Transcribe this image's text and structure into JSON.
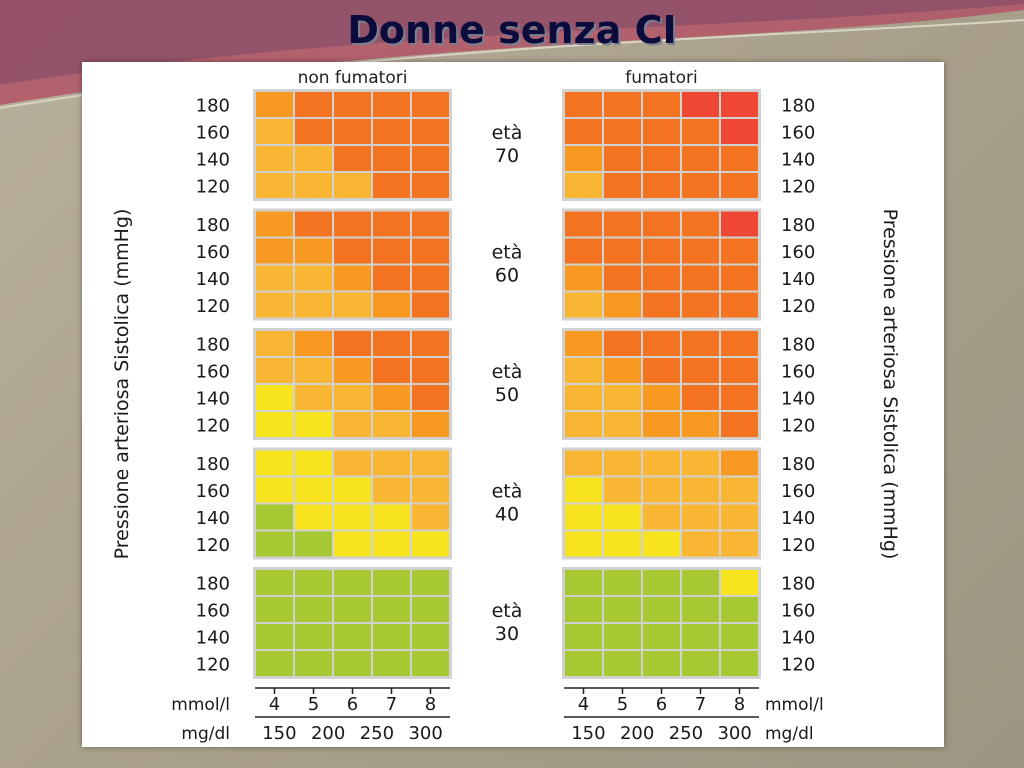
{
  "slide": {
    "title": "Donne senza CI"
  },
  "colors": {
    "green": "#a6c832",
    "yellow": "#f7e41e",
    "light_orange": "#f9b632",
    "orange": "#f89a22",
    "dark_orange": "#f47320",
    "red": "#ee4733"
  },
  "chart_data": {
    "type": "heatmap",
    "headers": {
      "left": "non fumatori",
      "right": "fumatori"
    },
    "ylabel_left": "Pressione arteriosa Sistolica (mmHg)",
    "ylabel_right": "Pressione arteriosa Sistolica (mmHg)",
    "age_word": "età",
    "rows": [
      "180",
      "160",
      "140",
      "120"
    ],
    "x_mmol": [
      "4",
      "5",
      "6",
      "7",
      "8"
    ],
    "x_mgdl": [
      "150",
      "200",
      "250",
      "300"
    ],
    "x_unit_mmol": "mmol/l",
    "x_unit_mgdl": "mg/dl",
    "risk_levels": [
      "green",
      "yellow",
      "light_orange",
      "orange",
      "dark_orange",
      "red"
    ],
    "groups": [
      {
        "age": "70",
        "non_smokers": [
          [
            3,
            4,
            4,
            4,
            4
          ],
          [
            2,
            4,
            4,
            4,
            4
          ],
          [
            2,
            2,
            4,
            4,
            4
          ],
          [
            2,
            2,
            2,
            4,
            4
          ]
        ],
        "smokers": [
          [
            4,
            4,
            4,
            5,
            5
          ],
          [
            4,
            4,
            4,
            4,
            5
          ],
          [
            3,
            4,
            4,
            4,
            4
          ],
          [
            2,
            4,
            4,
            4,
            4
          ]
        ]
      },
      {
        "age": "60",
        "non_smokers": [
          [
            3,
            4,
            4,
            4,
            4
          ],
          [
            3,
            3,
            4,
            4,
            4
          ],
          [
            2,
            2,
            3,
            4,
            4
          ],
          [
            2,
            2,
            2,
            3,
            4
          ]
        ],
        "smokers": [
          [
            4,
            4,
            4,
            4,
            5
          ],
          [
            4,
            4,
            4,
            4,
            4
          ],
          [
            3,
            4,
            4,
            4,
            4
          ],
          [
            2,
            3,
            4,
            4,
            4
          ]
        ]
      },
      {
        "age": "50",
        "non_smokers": [
          [
            2,
            3,
            4,
            4,
            4
          ],
          [
            2,
            2,
            3,
            4,
            4
          ],
          [
            1,
            2,
            2,
            3,
            4
          ],
          [
            1,
            1,
            2,
            2,
            3
          ]
        ],
        "smokers": [
          [
            3,
            4,
            4,
            4,
            4
          ],
          [
            2,
            3,
            4,
            4,
            4
          ],
          [
            2,
            2,
            3,
            4,
            4
          ],
          [
            2,
            2,
            3,
            3,
            4
          ]
        ]
      },
      {
        "age": "40",
        "non_smokers": [
          [
            1,
            1,
            2,
            2,
            2
          ],
          [
            1,
            1,
            1,
            2,
            2
          ],
          [
            0,
            1,
            1,
            1,
            2
          ],
          [
            0,
            0,
            1,
            1,
            1
          ]
        ],
        "smokers": [
          [
            2,
            2,
            2,
            2,
            3
          ],
          [
            1,
            2,
            2,
            2,
            2
          ],
          [
            1,
            1,
            2,
            2,
            2
          ],
          [
            1,
            1,
            1,
            2,
            2
          ]
        ]
      },
      {
        "age": "30",
        "non_smokers": [
          [
            0,
            0,
            0,
            0,
            0
          ],
          [
            0,
            0,
            0,
            0,
            0
          ],
          [
            0,
            0,
            0,
            0,
            0
          ],
          [
            0,
            0,
            0,
            0,
            0
          ]
        ],
        "smokers": [
          [
            0,
            0,
            0,
            0,
            1
          ],
          [
            0,
            0,
            0,
            0,
            0
          ],
          [
            0,
            0,
            0,
            0,
            0
          ],
          [
            0,
            0,
            0,
            0,
            0
          ]
        ]
      }
    ]
  }
}
